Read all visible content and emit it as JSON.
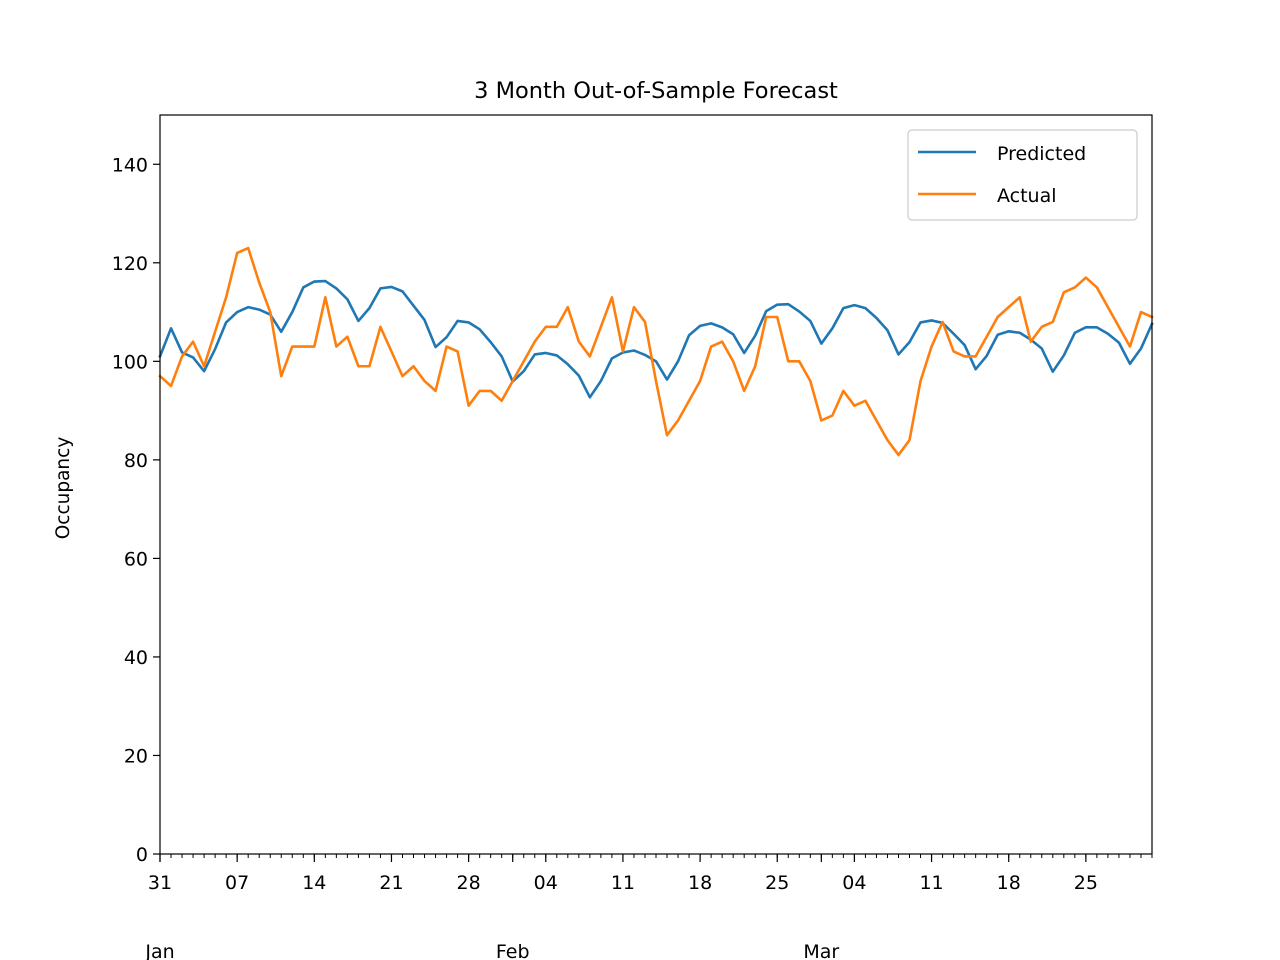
{
  "chart_data": {
    "type": "line",
    "title": "3 Month Out-of-Sample Forecast",
    "xlabel": "",
    "ylabel": "Occupancy",
    "ylim": [
      0,
      150
    ],
    "yticks": [
      0,
      20,
      40,
      60,
      80,
      100,
      120,
      140
    ],
    "xlim": [
      "2018-12-31",
      "2019-03-31"
    ],
    "x_start": "2018-12-31",
    "x_day_labels": [
      {
        "date": "2018-12-31",
        "label": "31"
      },
      {
        "date": "2019-01-07",
        "label": "07"
      },
      {
        "date": "2019-01-14",
        "label": "14"
      },
      {
        "date": "2019-01-21",
        "label": "21"
      },
      {
        "date": "2019-01-28",
        "label": "28"
      },
      {
        "date": "2019-02-04",
        "label": "04"
      },
      {
        "date": "2019-02-11",
        "label": "11"
      },
      {
        "date": "2019-02-18",
        "label": "18"
      },
      {
        "date": "2019-02-25",
        "label": "25"
      },
      {
        "date": "2019-03-04",
        "label": "04"
      },
      {
        "date": "2019-03-11",
        "label": "11"
      },
      {
        "date": "2019-03-18",
        "label": "18"
      },
      {
        "date": "2019-03-25",
        "label": "25"
      }
    ],
    "x_month_labels": [
      {
        "date": "2018-12-31",
        "label": "Jan"
      },
      {
        "date": "2019-02-01",
        "label": "Feb"
      },
      {
        "date": "2019-03-01",
        "label": "Mar"
      }
    ],
    "legend": {
      "position": "top-right"
    },
    "grid": false,
    "series": [
      {
        "name": "Predicted",
        "color": "#1f77b4",
        "values": [
          101,
          106.7,
          101.8,
          100.8,
          98,
          102.5,
          107.9,
          110,
          111,
          110.5,
          109.5,
          106,
          110,
          115,
          116.2,
          116.3,
          114.8,
          112.6,
          108.2,
          110.8,
          114.8,
          115.1,
          114.2,
          111.3,
          108.4,
          102.9,
          104.9,
          108.2,
          107.9,
          106.5,
          103.9,
          101,
          95.9,
          98,
          101.4,
          101.7,
          101.2,
          99.4,
          97.1,
          92.7,
          96,
          100.6,
          101.8,
          102.2,
          101.3,
          100,
          96.3,
          100,
          105.3,
          107.2,
          107.7,
          106.9,
          105.5,
          101.7,
          105.2,
          110.2,
          111.5,
          111.6,
          110.1,
          108.2,
          103.6,
          106.7,
          110.8,
          111.4,
          110.8,
          108.8,
          106.3,
          101.4,
          103.9,
          107.9,
          108.3,
          107.8,
          105.6,
          103.3,
          98.4,
          101.1,
          105.4,
          106.1,
          105.8,
          104.4,
          102.6,
          97.9,
          101.2,
          105.8,
          106.9,
          106.9,
          105.6,
          103.8,
          99.5,
          102.6,
          107.6
        ]
      },
      {
        "name": "Actual",
        "color": "#ff7f0e",
        "values": [
          97,
          95,
          101,
          104,
          99,
          106,
          113,
          122,
          123,
          116,
          110,
          97,
          103,
          103,
          103,
          113,
          103,
          105,
          99,
          99,
          107,
          102,
          97,
          99,
          96,
          94,
          103,
          102,
          91,
          94,
          94,
          92,
          96,
          100,
          104,
          107,
          107,
          111,
          104,
          101,
          107,
          113,
          102,
          111,
          108,
          96,
          85,
          88,
          92,
          96,
          103,
          104,
          100,
          94,
          99,
          109,
          109,
          100,
          100,
          96,
          88,
          89,
          94,
          91,
          92,
          88,
          84,
          81,
          84,
          96,
          103,
          108,
          102,
          101,
          101,
          105,
          109,
          111,
          113,
          104,
          107,
          108,
          114,
          115,
          117,
          115,
          111,
          107,
          103,
          110,
          109
        ]
      }
    ]
  }
}
